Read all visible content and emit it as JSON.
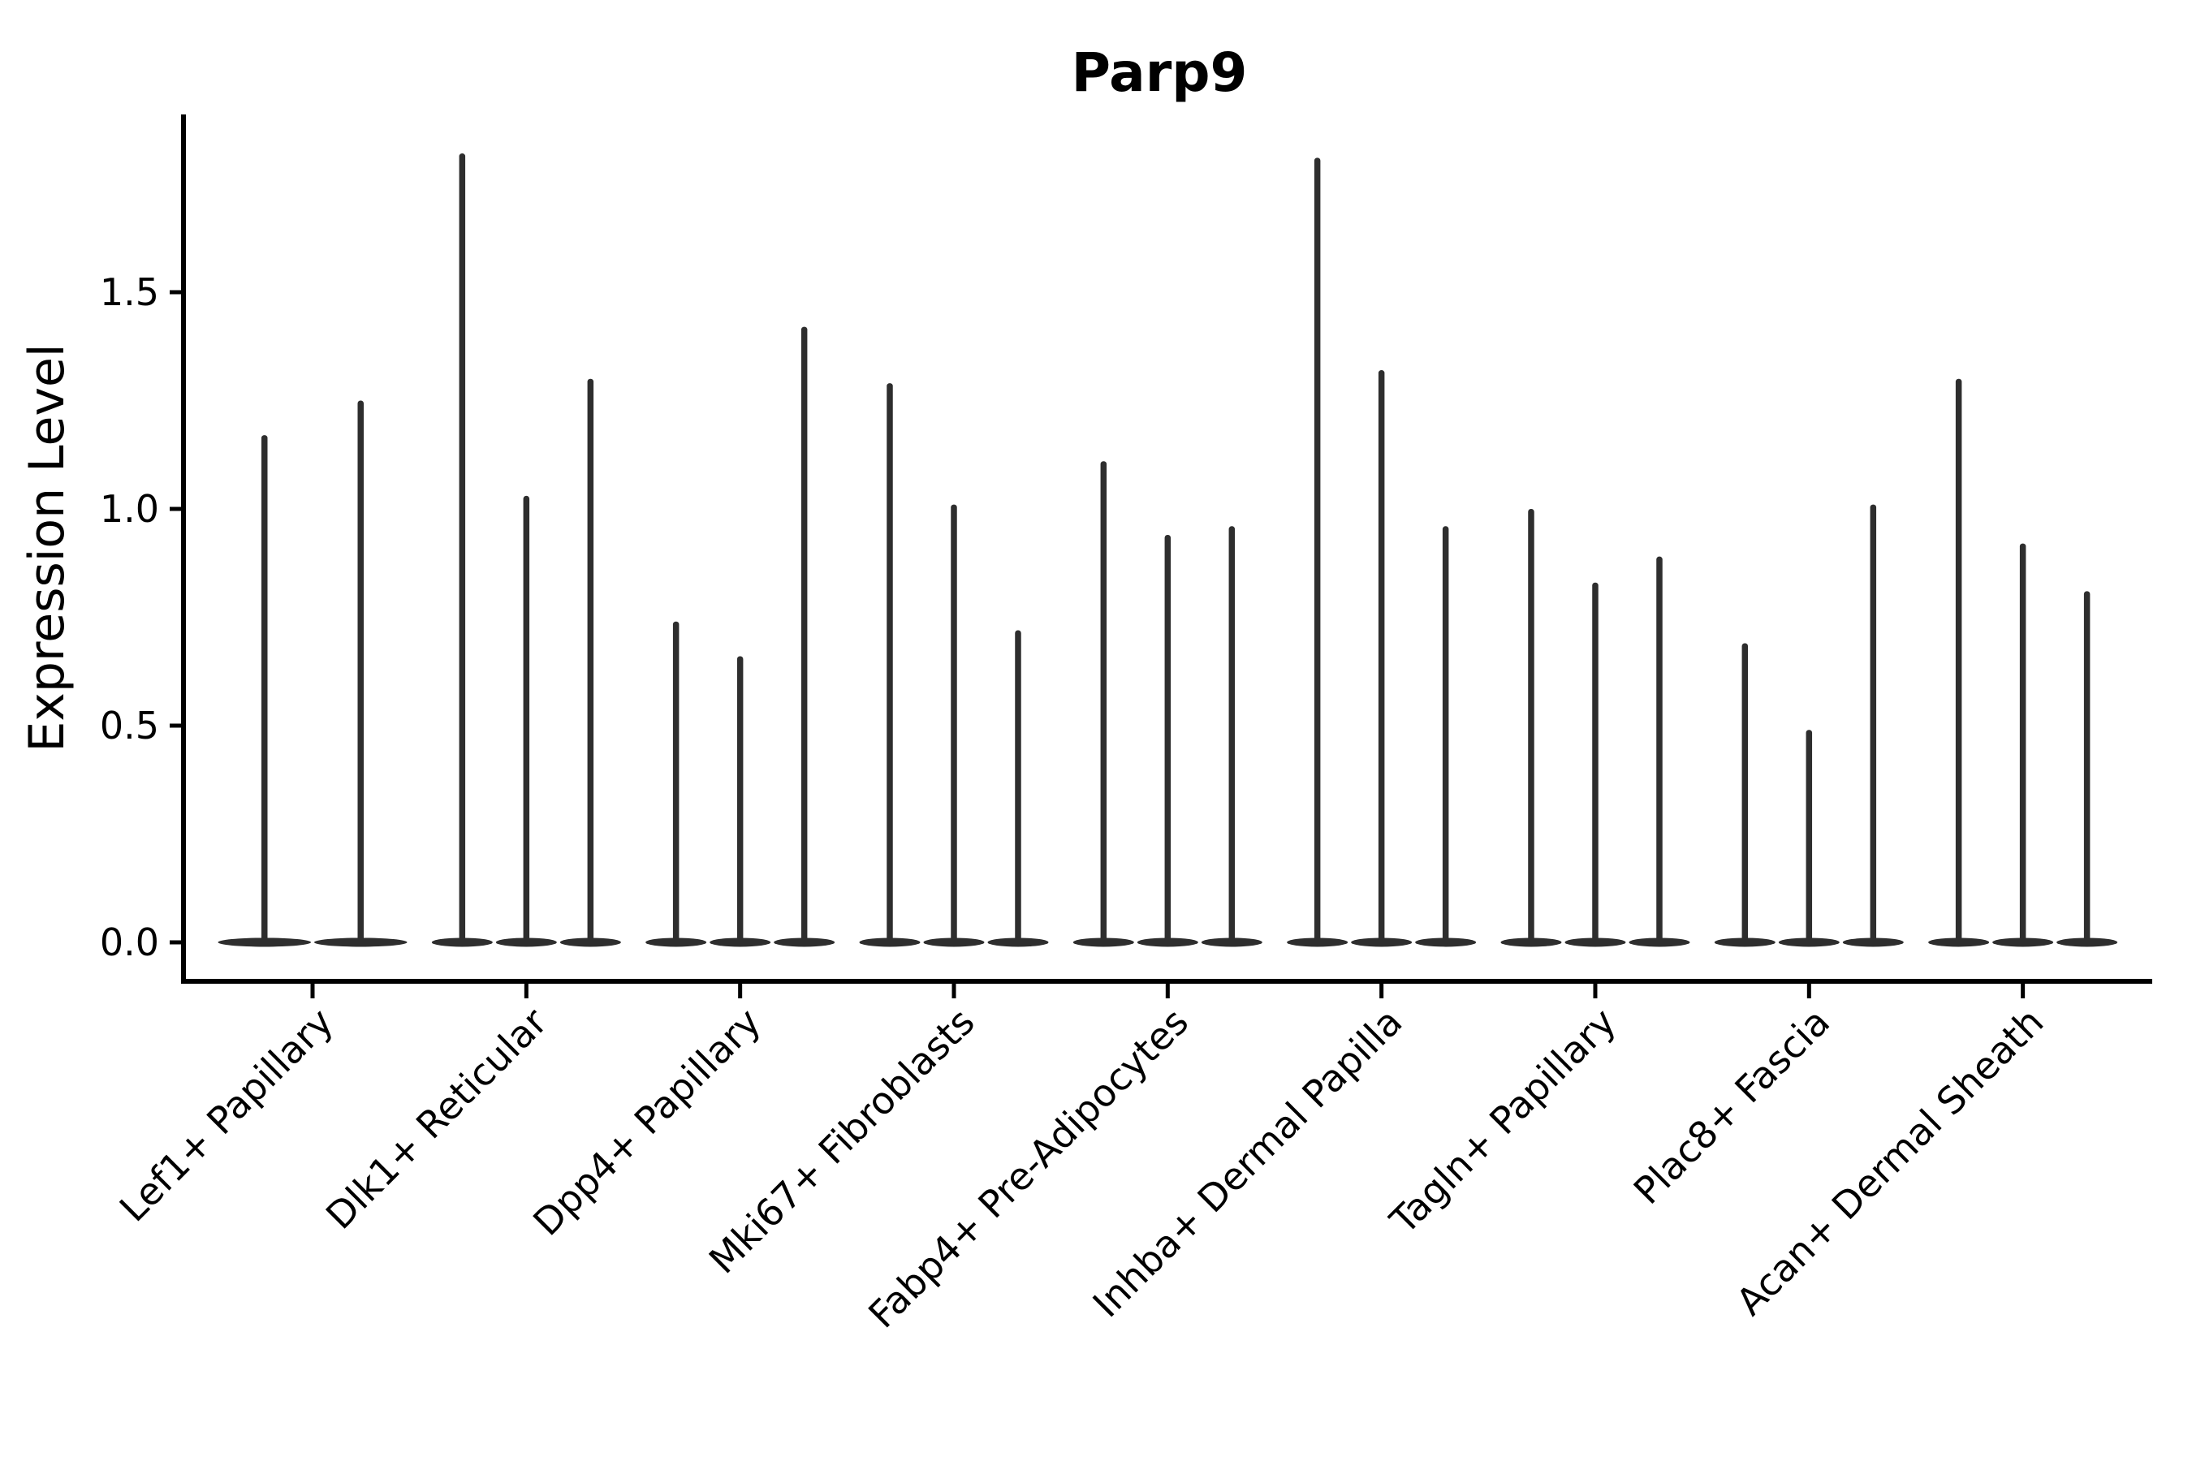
{
  "chart_data": {
    "type": "violin",
    "title": "Parp9",
    "xlabel": "",
    "ylabel": "Expression Level",
    "yticks": [
      0,
      0.5,
      1,
      1.5
    ],
    "ylim": [
      -0.09,
      1.91
    ],
    "grid": false,
    "legend": "none",
    "background_color": "#ffffff",
    "violin_color": "#2e2e2e",
    "axis_color": "#000000",
    "text_color": "#000000",
    "description": "Each category shows thin spike-shaped violins; values are the maximum expression level reached by each violin spike, left to right within the category.",
    "categories": [
      {
        "label": "Lef1+ Papillary",
        "violin_max_values": [
          1.17,
          1.25
        ]
      },
      {
        "label": "Dlk1+ Reticular",
        "violin_max_values": [
          1.82,
          1.03,
          1.3
        ]
      },
      {
        "label": "Dpp4+ Papillary",
        "violin_max_values": [
          0.74,
          0.66,
          1.42
        ]
      },
      {
        "label": "Mki67+ Fibroblasts",
        "violin_max_values": [
          1.29,
          1.01,
          0.72
        ]
      },
      {
        "label": "Fabp4+ Pre-Adipocytes",
        "violin_max_values": [
          1.11,
          0.94,
          0.96
        ]
      },
      {
        "label": "Inhba+ Dermal Papilla",
        "violin_max_values": [
          1.81,
          1.32,
          0.96
        ]
      },
      {
        "label": "Tagln+ Papillary",
        "violin_max_values": [
          1.0,
          0.83,
          0.89
        ]
      },
      {
        "label": "Plac8+ Fascia",
        "violin_max_values": [
          0.69,
          0.49,
          1.01
        ]
      },
      {
        "label": "Acan+ Dermal Sheath",
        "violin_max_values": [
          1.3,
          0.92,
          0.81
        ]
      }
    ]
  }
}
